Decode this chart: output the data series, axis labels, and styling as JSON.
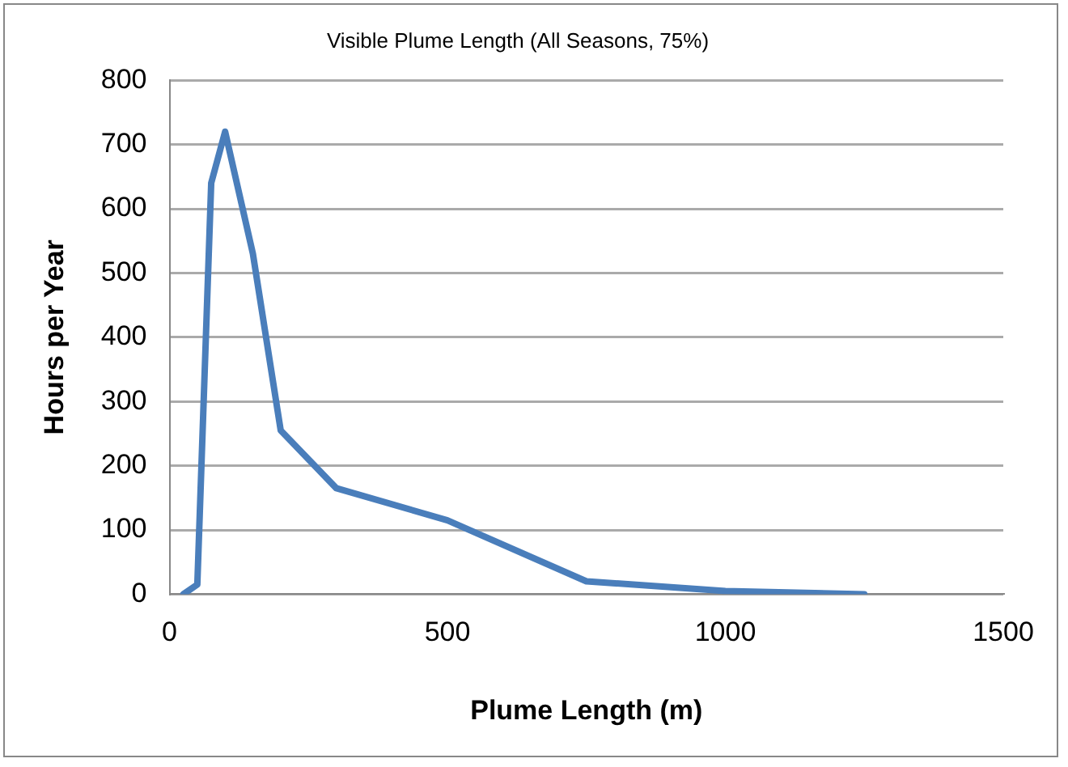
{
  "chart_data": {
    "type": "line",
    "title": "Visible Plume Length (All Seasons, 75%)",
    "xlabel": "Plume Length (m)",
    "ylabel": "Hours per Year",
    "x": [
      25,
      50,
      75,
      100,
      150,
      200,
      300,
      500,
      750,
      1000,
      1250
    ],
    "series": [
      {
        "color": "#4a7ebb",
        "values": [
          0,
          15,
          640,
          720,
          530,
          255,
          165,
          115,
          20,
          5,
          0
        ]
      }
    ],
    "xlim": [
      0,
      1500
    ],
    "xticks": [
      0,
      500,
      1000,
      1500
    ],
    "ylim": [
      0,
      800
    ],
    "yticks": [
      0,
      100,
      200,
      300,
      400,
      500,
      600,
      700,
      800
    ],
    "grid": "y",
    "legend": false,
    "marker": "none",
    "line_style": "solid"
  }
}
